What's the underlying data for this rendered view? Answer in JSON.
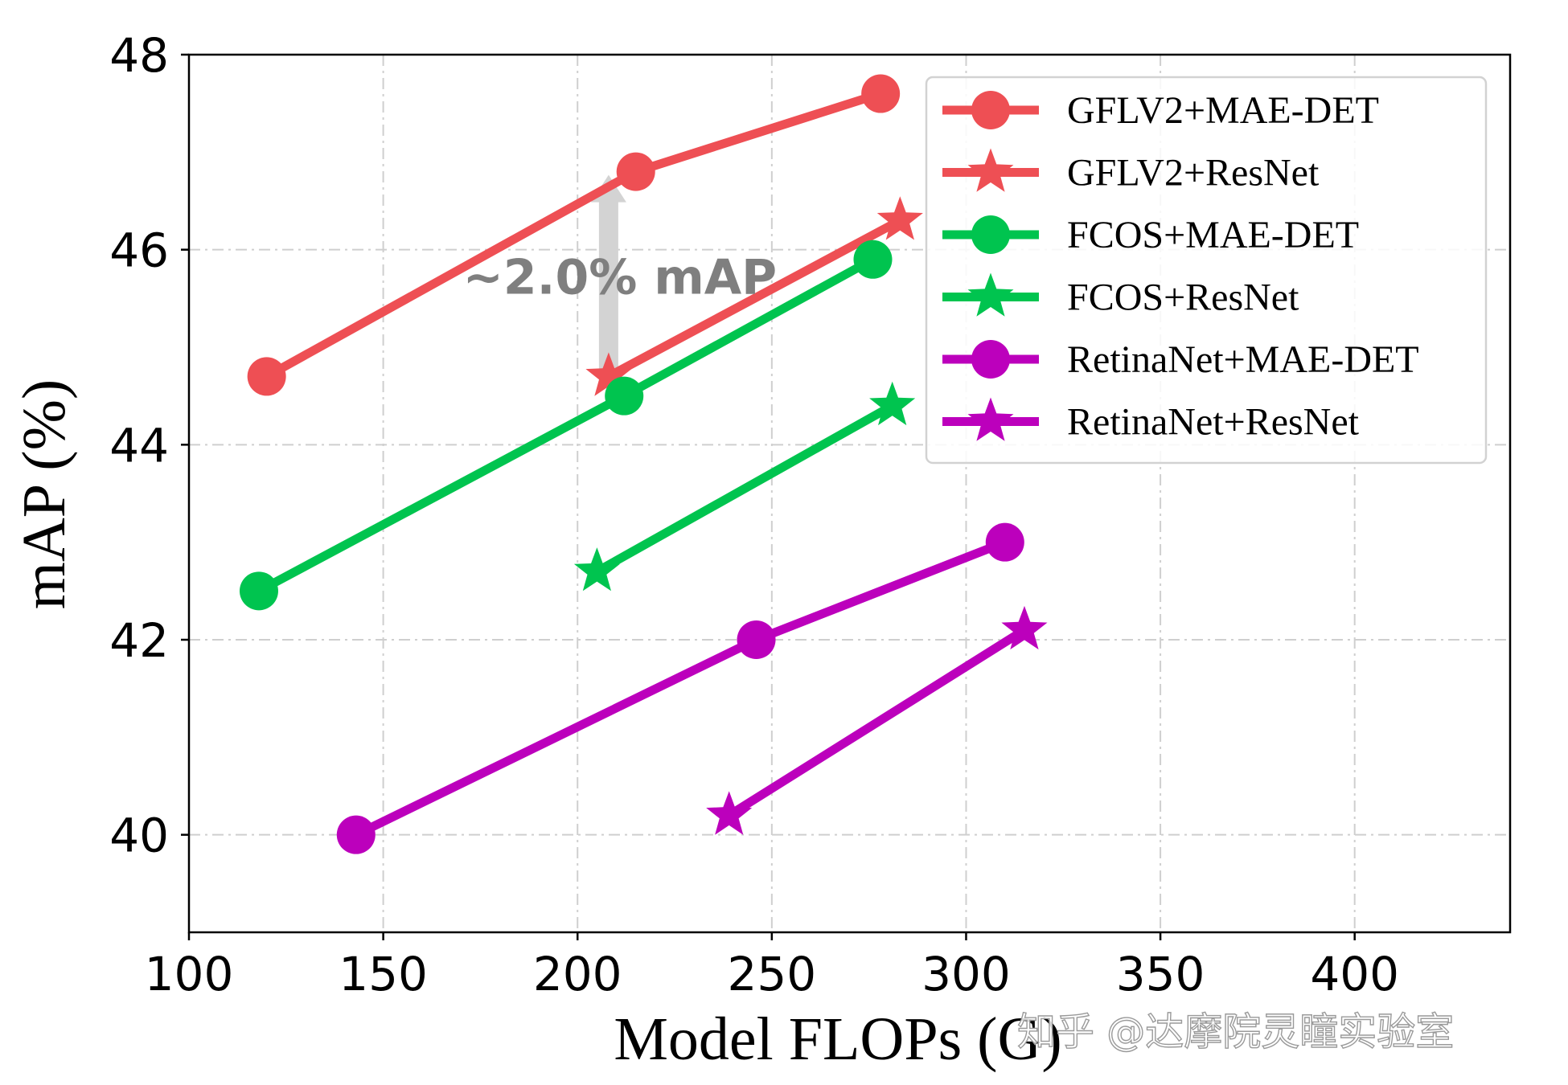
{
  "chart_data": {
    "type": "line",
    "title": "",
    "xlabel": "Model FLOPs (G)",
    "ylabel": "mAP (%)",
    "xlim": [
      100,
      440
    ],
    "ylim": [
      39,
      48
    ],
    "xticks": [
      100,
      150,
      200,
      250,
      300,
      350,
      400
    ],
    "yticks": [
      40,
      42,
      44,
      46,
      48
    ],
    "xtick_labels": [
      "100",
      "150",
      "200",
      "250",
      "300",
      "350",
      "400"
    ],
    "ytick_labels": [
      "40",
      "42",
      "44",
      "46",
      "48"
    ],
    "grid": true,
    "legend_position": "top-right",
    "series": [
      {
        "name": "GFLV2+MAE-DET",
        "color": "#ee4f54",
        "marker": "circle",
        "x": [
          120,
          215,
          278
        ],
        "y": [
          44.7,
          46.8,
          47.6
        ]
      },
      {
        "name": "GFLV2+ResNet",
        "color": "#ee4f54",
        "marker": "star",
        "x": [
          208,
          283
        ],
        "y": [
          44.7,
          46.3
        ]
      },
      {
        "name": "FCOS+MAE-DET",
        "color": "#00c44f",
        "marker": "circle",
        "x": [
          118,
          212,
          276
        ],
        "y": [
          42.5,
          44.5,
          45.9
        ]
      },
      {
        "name": "FCOS+ResNet",
        "color": "#00c44f",
        "marker": "star",
        "x": [
          205,
          281
        ],
        "y": [
          42.7,
          44.4
        ]
      },
      {
        "name": "RetinaNet+MAE-DET",
        "color": "#bc00bc",
        "marker": "circle",
        "x": [
          143,
          246,
          310
        ],
        "y": [
          40.0,
          42.0,
          43.0
        ]
      },
      {
        "name": "RetinaNet+ResNet",
        "color": "#bc00bc",
        "marker": "star",
        "x": [
          239,
          315
        ],
        "y": [
          40.2,
          42.1
        ]
      }
    ],
    "annotation": {
      "text": "~2.0% mAP",
      "x": 208,
      "y_from": 44.7,
      "y_to": 46.8,
      "color": "#d3d3d3"
    }
  },
  "watermark": "知乎 @达摩院灵瞳实验室"
}
